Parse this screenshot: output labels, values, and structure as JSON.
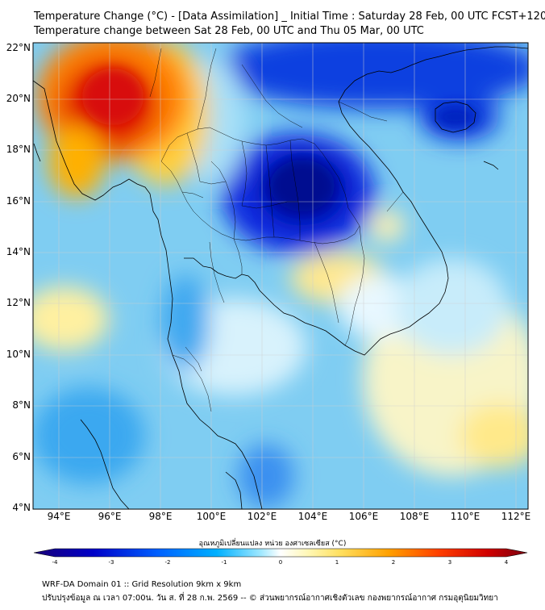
{
  "header": {
    "title_line1": "Temperature Change (°C) - [Data Assimilation] _ Initial Time : Saturday 28 Feb, 00 UTC FCST+120",
    "title_line2": "Temperature change between Sat 28 Feb, 00 UTC and Thu 05 Mar, 00 UTC"
  },
  "map": {
    "lat_labels": [
      "22°N",
      "20°N",
      "18°N",
      "16°N",
      "14°N",
      "12°N",
      "10°N",
      "8°N",
      "6°N",
      "4°N"
    ],
    "lon_labels": [
      "94°E",
      "96°E",
      "98°E",
      "100°E",
      "102°E",
      "104°E",
      "106°E",
      "108°E",
      "110°E",
      "112°E"
    ],
    "extent": {
      "lon_min": 93.0,
      "lon_max": 112.5,
      "lat_min": 4.0,
      "lat_max": 22.2
    },
    "gridlines": true,
    "colors": {
      "ocean_base": "#8ad0f0",
      "coast": "#000000",
      "grid": "#cfcfcf"
    }
  },
  "colorbar": {
    "title": "อุณหภูมิเปลี่ยนแปลง หน่วย องศาเซลเซียส (°C)",
    "ticks": [
      "-4",
      "-3",
      "-2",
      "-1",
      "0",
      "1",
      "2",
      "3",
      "4"
    ],
    "range": [
      -4,
      4
    ],
    "colors": [
      "#1a0078",
      "#0000c8",
      "#0050ff",
      "#00a0ff",
      "#40d0ff",
      "#ffffff",
      "#fff090",
      "#ffc000",
      "#ff6000",
      "#e00000",
      "#8a0010"
    ]
  },
  "footer": {
    "line1": "WRF-DA Domain 01 :: Grid Resolution 9km x 9km",
    "line2": "ปรับปรุงข้อมูล ณ เวลา 07:00น. วัน ส. ที่ 28 ก.พ. 2569 -- © ส่วนพยากรณ์อากาศเชิงตัวเลข กองพยากรณ์อากาศ กรมอุตุนิยมวิทยา"
  }
}
